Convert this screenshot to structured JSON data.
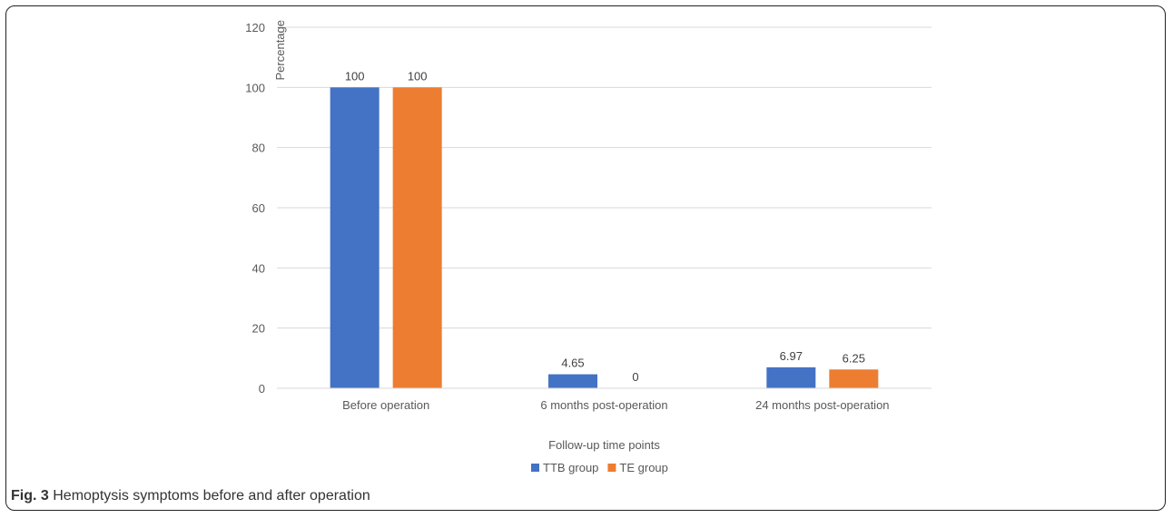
{
  "chart_data": {
    "type": "bar",
    "categories": [
      "Before operation",
      "6 months post-operation",
      "24 months post-operation"
    ],
    "series": [
      {
        "name": "TTB group",
        "values": [
          100,
          4.65,
          6.97
        ],
        "labels": [
          "100",
          "4.65",
          "6.97"
        ],
        "color": "#4472C4"
      },
      {
        "name": "TE group",
        "values": [
          100,
          0,
          6.25
        ],
        "labels": [
          "100",
          "0",
          "6.25"
        ],
        "color": "#ED7D31"
      }
    ],
    "xlabel": "Follow-up time points",
    "ylabel": "Percentage",
    "ylim": [
      0,
      120
    ],
    "yticks": [
      0,
      20,
      40,
      60,
      80,
      100,
      120
    ],
    "grid": true,
    "legend": "bottom-center"
  },
  "caption": {
    "fig_label": "Fig. 3",
    "text": "Hemoptysis symptoms before and after operation"
  }
}
